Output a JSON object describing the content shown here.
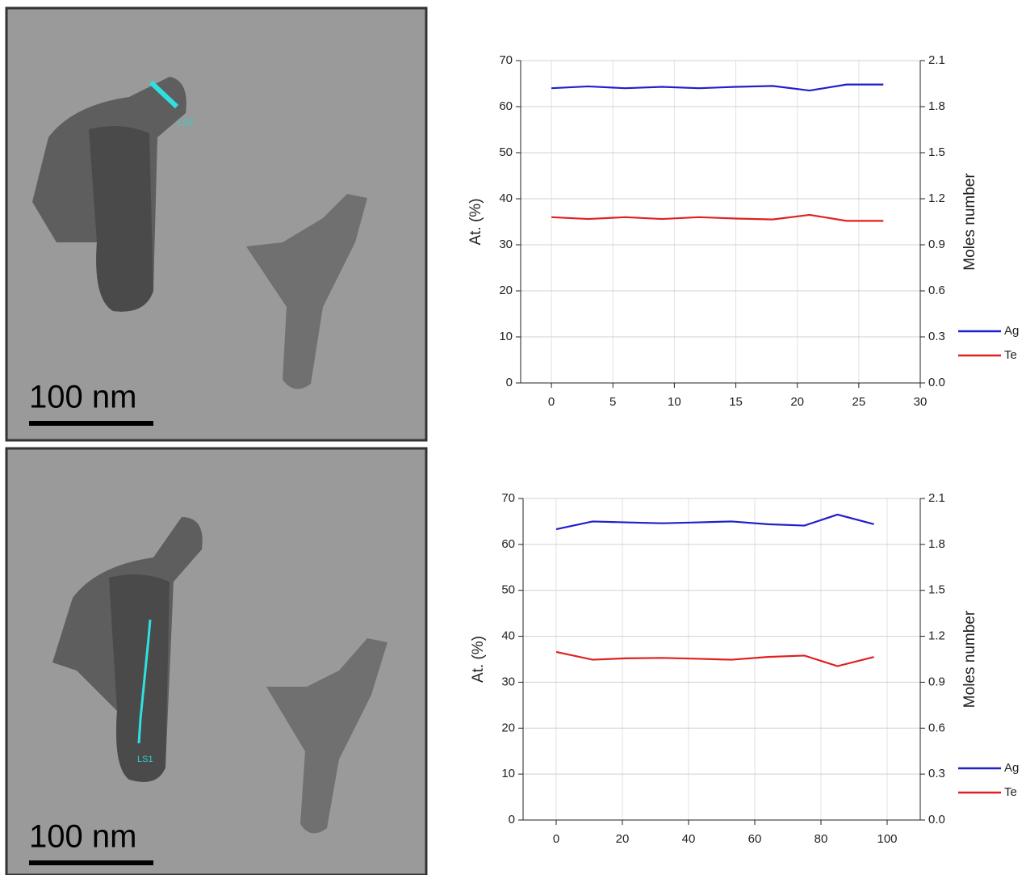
{
  "micrographs": [
    {
      "scale_bar": "100 nm",
      "line_label": "LS2"
    },
    {
      "scale_bar": "100 nm",
      "line_label": "LS1"
    }
  ],
  "chart_data": [
    {
      "type": "line",
      "ylabel": "At. (%)",
      "y2label": "Moles number",
      "x": [
        0,
        3,
        6,
        9,
        12,
        15,
        18,
        21,
        24,
        27
      ],
      "series": [
        {
          "name": "Ag",
          "color": "#1f1fcc",
          "values": [
            64,
            64.4,
            64,
            64.3,
            64,
            64.3,
            64.5,
            63.5,
            64.8,
            64.8
          ]
        },
        {
          "name": "Te",
          "color": "#e02020",
          "values": [
            36,
            35.6,
            36,
            35.6,
            36,
            35.7,
            35.5,
            36.5,
            35.2,
            35.2
          ]
        }
      ],
      "xlim": [
        -2.5,
        30
      ],
      "xticks": [
        0,
        5,
        10,
        15,
        20,
        25,
        30
      ],
      "ylim": [
        0,
        70
      ],
      "yticks": [
        0,
        10,
        20,
        30,
        40,
        50,
        60,
        70
      ],
      "y2lim": [
        0,
        2.1
      ],
      "y2ticks": [
        {
          "value": 0,
          "label": "0.0"
        },
        0.3,
        0.6,
        0.9,
        1.2,
        1.5,
        1.8,
        2.1
      ],
      "grid": true,
      "legend": "right"
    },
    {
      "type": "line",
      "ylabel": "At. (%)",
      "y2label": "Moles number",
      "x": [
        0,
        11,
        21,
        32,
        43,
        53,
        64,
        75,
        85,
        96
      ],
      "series": [
        {
          "name": "Ag",
          "color": "#1f1fcc",
          "values": [
            63.3,
            65,
            64.8,
            64.6,
            64.8,
            65,
            64.4,
            64.1,
            66.5,
            64.4
          ]
        },
        {
          "name": "Te",
          "color": "#e02020",
          "values": [
            36.6,
            34.9,
            35.2,
            35.3,
            35.1,
            34.9,
            35.5,
            35.8,
            33.5,
            35.5
          ]
        }
      ],
      "xlim": [
        -10,
        110
      ],
      "xticks": [
        0,
        20,
        40,
        60,
        80,
        100
      ],
      "ylim": [
        0,
        70
      ],
      "yticks": [
        0,
        10,
        20,
        30,
        40,
        50,
        60,
        70
      ],
      "y2lim": [
        0,
        2.1
      ],
      "y2ticks": [
        {
          "value": 0,
          "label": "0.0"
        },
        0.3,
        0.6,
        0.9,
        1.2,
        1.5,
        1.8,
        2.1
      ],
      "grid": true,
      "legend": "right"
    }
  ]
}
